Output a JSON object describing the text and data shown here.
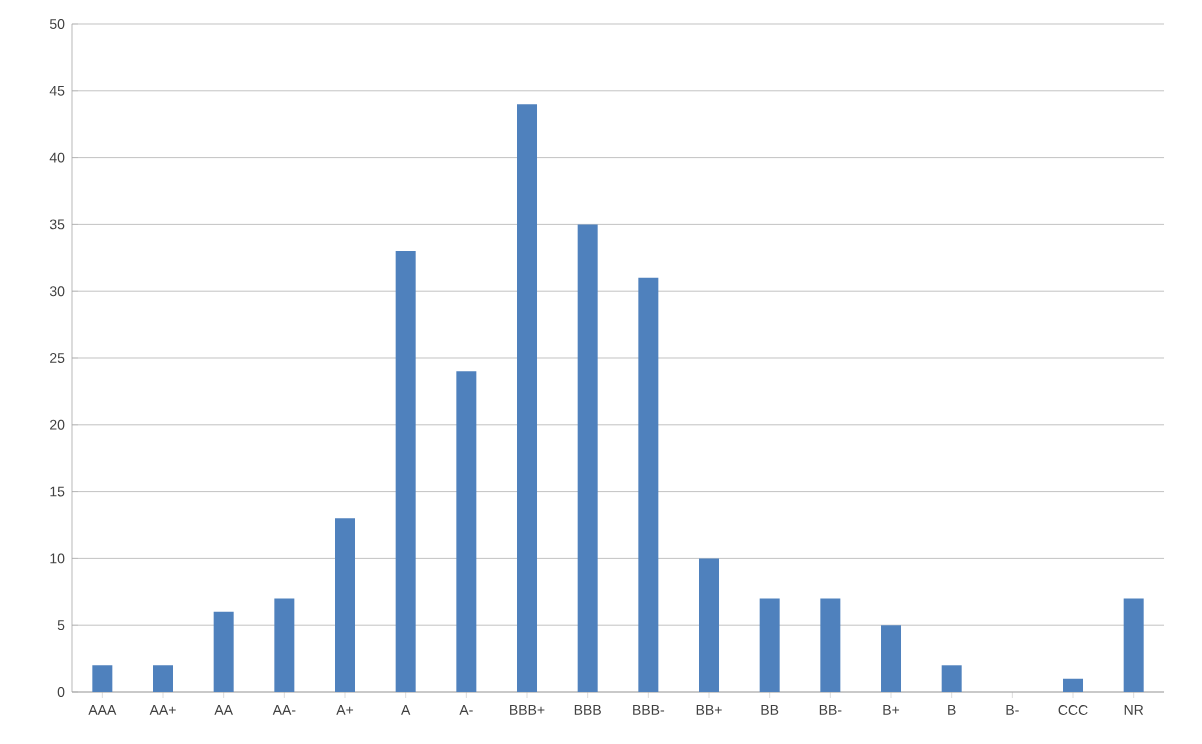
{
  "chart_data": {
    "type": "bar",
    "categories": [
      "AAA",
      "AA+",
      "AA",
      "AA-",
      "A+",
      "A",
      "A-",
      "BBB+",
      "BBB",
      "BBB-",
      "BB+",
      "BB",
      "BB-",
      "B+",
      "B",
      "B-",
      "CCC",
      "NR"
    ],
    "values": [
      2,
      2,
      6,
      7,
      13,
      33,
      24,
      44,
      35,
      31,
      10,
      7,
      7,
      5,
      2,
      0,
      1,
      7
    ],
    "color": "#4f81bd",
    "ylim": [
      0,
      50
    ],
    "yticks": [
      0,
      5,
      10,
      15,
      20,
      25,
      30,
      35,
      40,
      45,
      50
    ],
    "grid": "y"
  }
}
